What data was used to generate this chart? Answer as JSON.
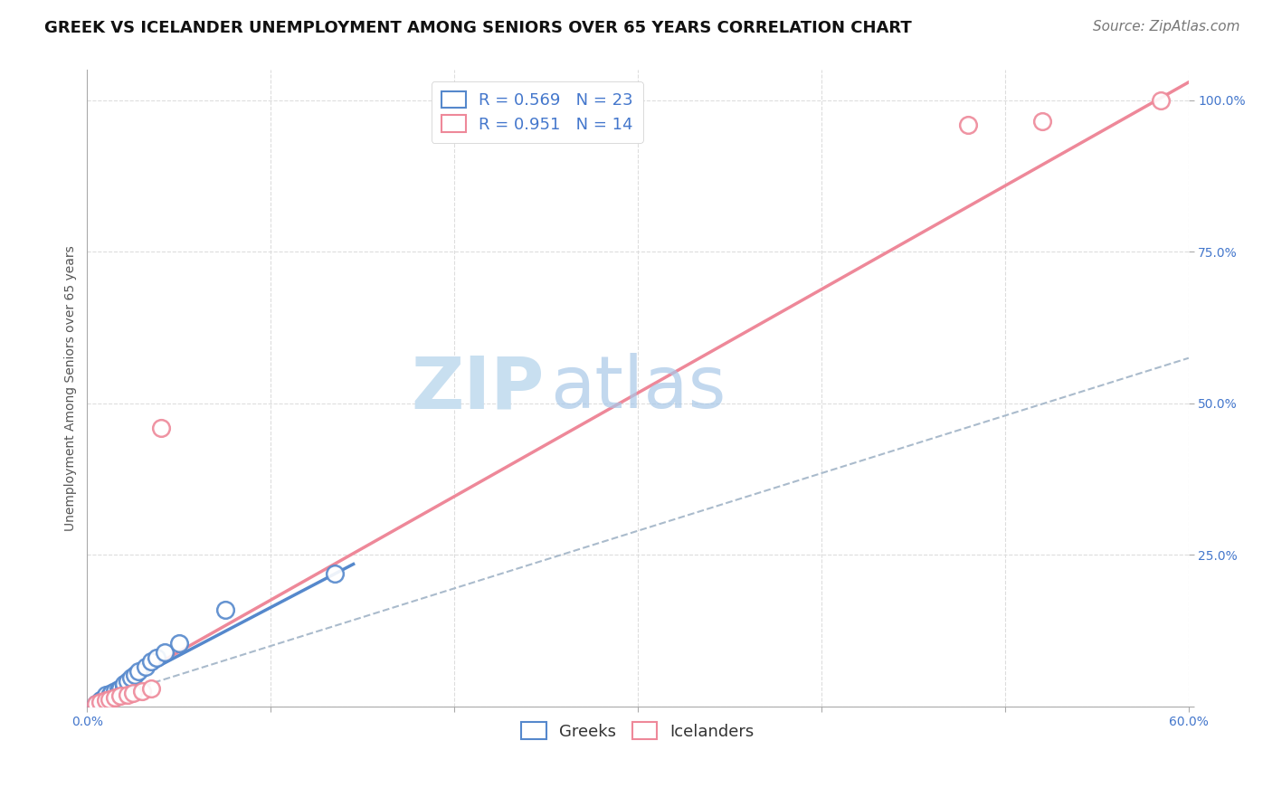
{
  "title": "GREEK VS ICELANDER UNEMPLOYMENT AMONG SENIORS OVER 65 YEARS CORRELATION CHART",
  "source": "Source: ZipAtlas.com",
  "ylabel": "Unemployment Among Seniors over 65 years",
  "x_min": 0.0,
  "x_max": 0.6,
  "y_min": 0.0,
  "y_max": 1.05,
  "x_ticks": [
    0.0,
    0.1,
    0.2,
    0.3,
    0.4,
    0.5,
    0.6
  ],
  "x_tick_labels": [
    "0.0%",
    "",
    "",
    "",
    "",
    "",
    "60.0%"
  ],
  "y_ticks": [
    0.0,
    0.25,
    0.5,
    0.75,
    1.0
  ],
  "y_tick_labels": [
    "",
    "25.0%",
    "50.0%",
    "75.0%",
    "100.0%"
  ],
  "greek_R": 0.569,
  "greek_N": 23,
  "icelander_R": 0.951,
  "icelander_N": 14,
  "greek_color": "#5588CC",
  "greek_color_light": "#AACCEE",
  "icelander_color": "#EE8899",
  "icelander_color_light": "#FFCCCC",
  "greek_points_x": [
    0.005,
    0.007,
    0.008,
    0.01,
    0.01,
    0.012,
    0.013,
    0.015,
    0.017,
    0.018,
    0.02,
    0.02,
    0.022,
    0.024,
    0.026,
    0.028,
    0.032,
    0.035,
    0.038,
    0.042,
    0.05,
    0.075,
    0.135
  ],
  "greek_points_y": [
    0.005,
    0.01,
    0.012,
    0.015,
    0.02,
    0.018,
    0.022,
    0.025,
    0.028,
    0.03,
    0.032,
    0.038,
    0.042,
    0.048,
    0.052,
    0.058,
    0.065,
    0.075,
    0.08,
    0.09,
    0.105,
    0.16,
    0.22
  ],
  "icelander_points_x": [
    0.005,
    0.007,
    0.01,
    0.012,
    0.015,
    0.018,
    0.022,
    0.025,
    0.03,
    0.035,
    0.04,
    0.48,
    0.52,
    0.585
  ],
  "icelander_points_y": [
    0.005,
    0.008,
    0.01,
    0.012,
    0.015,
    0.018,
    0.02,
    0.022,
    0.025,
    0.03,
    0.46,
    0.96,
    0.965,
    1.0
  ],
  "greek_line_x": [
    0.0,
    0.145
  ],
  "greek_line_y": [
    0.005,
    0.235
  ],
  "greek_dash_line_x": [
    0.0,
    0.6
  ],
  "greek_dash_line_y": [
    0.005,
    0.575
  ],
  "icelander_line_x": [
    0.0,
    0.6
  ],
  "icelander_line_y": [
    0.005,
    1.03
  ],
  "grid_color": "#DDDDDD",
  "background_color": "#FFFFFF",
  "title_fontsize": 13,
  "axis_label_fontsize": 10,
  "tick_fontsize": 10,
  "legend_fontsize": 13,
  "source_fontsize": 11,
  "tick_color": "#4477CC",
  "legend_text_color": "#4477CC"
}
